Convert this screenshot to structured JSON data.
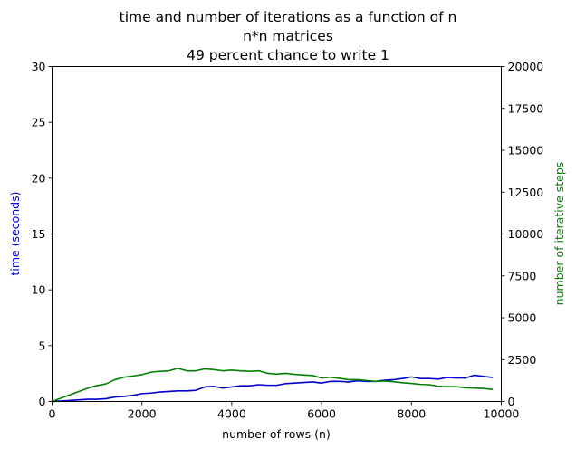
{
  "chart_data": {
    "type": "line",
    "title_lines": [
      "time and number of iterations as a function of n",
      "n*n matrices",
      "49 percent chance to write 1"
    ],
    "xlabel": "number of rows (n)",
    "ylabel_left": "time (seconds)",
    "ylabel_right": "number of iterative steps",
    "xlim": [
      0,
      10000
    ],
    "ylim_left": [
      0,
      30
    ],
    "ylim_right": [
      0,
      20000
    ],
    "x_ticks": [
      "0",
      "2000",
      "4000",
      "6000",
      "8000",
      "10000"
    ],
    "y_left_ticks": [
      "0",
      "5",
      "10",
      "15",
      "20",
      "25",
      "30"
    ],
    "y_right_ticks": [
      "0",
      "2500",
      "5000",
      "7500",
      "10000",
      "12500",
      "15000",
      "17500",
      "20000"
    ],
    "grid": false,
    "colors": {
      "time": "#0000cc",
      "iterations": "#008000"
    },
    "x": [
      0,
      200,
      400,
      600,
      800,
      1000,
      1200,
      1400,
      1600,
      1800,
      2000,
      2200,
      2400,
      2600,
      2800,
      3000,
      3200,
      3400,
      3600,
      3800,
      4000,
      4200,
      4400,
      4600,
      4800,
      5000,
      5200,
      5400,
      5600,
      5800,
      6000,
      6200,
      6400,
      6600,
      6800,
      7000,
      7200,
      7400,
      7600,
      7800,
      8000,
      8200,
      8400,
      8600,
      8800,
      9000,
      9200,
      9400,
      9600,
      9800
    ],
    "series": [
      {
        "axis": "left",
        "color": "#0000cc",
        "values": [
          0.0,
          0.05,
          0.1,
          0.15,
          0.2,
          0.2,
          0.25,
          0.4,
          0.45,
          0.55,
          0.7,
          0.75,
          0.85,
          0.9,
          0.95,
          0.95,
          1.0,
          1.3,
          1.35,
          1.2,
          1.3,
          1.4,
          1.4,
          1.5,
          1.45,
          1.45,
          1.6,
          1.65,
          1.7,
          1.75,
          1.65,
          1.8,
          1.8,
          1.75,
          1.85,
          1.8,
          1.8,
          1.9,
          1.95,
          2.05,
          2.2,
          2.05,
          2.05,
          2.0,
          2.15,
          2.1,
          2.1,
          2.35,
          2.25,
          2.15
        ]
      },
      {
        "axis": "right",
        "color": "#008000",
        "values": [
          0,
          200,
          400,
          600,
          800,
          950,
          1050,
          1300,
          1450,
          1520,
          1600,
          1750,
          1800,
          1830,
          1980,
          1830,
          1830,
          1950,
          1900,
          1830,
          1870,
          1830,
          1800,
          1830,
          1680,
          1630,
          1680,
          1620,
          1580,
          1550,
          1400,
          1450,
          1380,
          1300,
          1300,
          1250,
          1200,
          1220,
          1180,
          1120,
          1080,
          1020,
          1000,
          900,
          880,
          880,
          820,
          800,
          780,
          720
        ]
      }
    ]
  }
}
